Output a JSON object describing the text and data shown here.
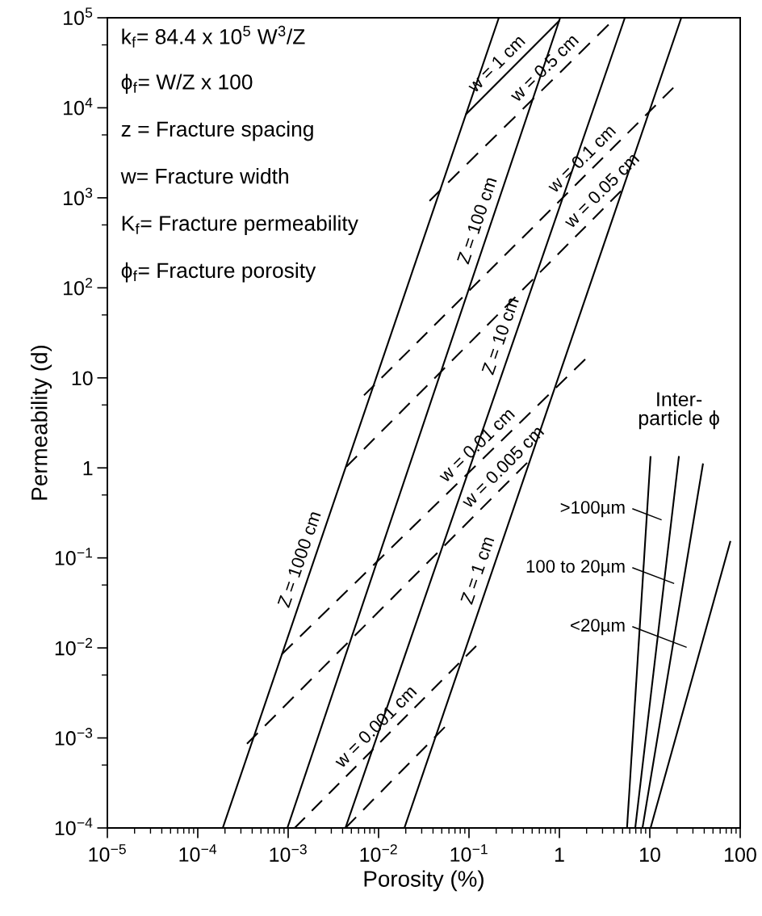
{
  "chart_data": {
    "type": "line",
    "xlabel": "Porosity (%)",
    "ylabel": "Permeability (d)",
    "log": "xy",
    "xlim": [
      1e-05,
      100
    ],
    "ylim": [
      0.0001,
      100000
    ],
    "xticks": [
      {
        "value": 1e-05,
        "label": "10$^{−5}$"
      },
      {
        "value": 0.0001,
        "label": "10$^{−4}$"
      },
      {
        "value": 0.001,
        "label": "10$^{−3}$"
      },
      {
        "value": 0.01,
        "label": "10$^{−2}$"
      },
      {
        "value": 0.1,
        "label": "10$^{−1}$"
      },
      1,
      10,
      100
    ],
    "yticks": [
      {
        "value": 0.0001,
        "label": "10$^{−4}$"
      },
      {
        "value": 0.001,
        "label": "10$^{−3}$"
      },
      {
        "value": 0.01,
        "label": "10$^{−2}$"
      },
      {
        "value": 0.1,
        "label": "10$^{−1}$"
      },
      1,
      10,
      {
        "value": 100,
        "label": "10$^{2}$"
      },
      {
        "value": 1000,
        "label": "10$^{3}$"
      },
      {
        "value": 10000,
        "label": "10$^{4}$"
      },
      {
        "value": 100000,
        "label": "10$^{5}$"
      }
    ],
    "series": [
      {
        "color": "#000000",
        "line_style": "solid",
        "x": [
          0.000189,
          0.214
        ],
        "values": [
          0.0001,
          100000
        ]
      },
      {
        "color": "#000000",
        "line_style": "solid",
        "x": [
          0.00098,
          1.02
        ],
        "values": [
          0.0001,
          100000
        ]
      },
      {
        "color": "#000000",
        "line_style": "solid",
        "x": [
          0.0043,
          5.3
        ],
        "values": [
          0.0001,
          100000
        ]
      },
      {
        "color": "#000000",
        "line_style": "solid",
        "x": [
          0.0193,
          22.3
        ],
        "values": [
          0.0001,
          100000
        ]
      },
      {
        "color": "#000000",
        "line_style": "solid",
        "x": [
          0.092,
          1.0
        ],
        "values": [
          8430,
          93000
        ]
      },
      {
        "color": "#000000",
        "line_style": "dashed",
        "x": [
          0.0366,
          3.5
        ],
        "values": [
          925,
          83700
        ]
      },
      {
        "color": "#000000",
        "line_style": "dashed",
        "x": [
          0.0069,
          18.2
        ],
        "values": [
          6.4,
          16700
        ]
      },
      {
        "color": "#000000",
        "line_style": "dashed",
        "x": [
          0.0044,
          4.8
        ],
        "values": [
          1.03,
          1190
        ]
      },
      {
        "color": "#000000",
        "line_style": "dashed",
        "x": [
          0.00085,
          1.93
        ],
        "values": [
          0.0085,
          16.1
        ]
      },
      {
        "color": "#000000",
        "line_style": "dashed",
        "x": [
          0.00035,
          0.44
        ],
        "values": [
          0.00086,
          1.14
        ]
      },
      {
        "color": "#000000",
        "line_style": "dashed",
        "x": [
          0.00118,
          0.12
        ],
        "values": [
          0.0001,
          0.0105
        ]
      },
      {
        "color": "#000000",
        "line_style": "dashed",
        "x": [
          0.0043,
          0.054
        ],
        "values": [
          0.0001,
          0.00132
        ]
      },
      {
        "color": "#000000",
        "line_style": "solid",
        "x": [
          5.6,
          10.2
        ],
        "values": [
          0.0001,
          1.35
        ]
      },
      {
        "color": "#000000",
        "line_style": "solid",
        "x": [
          6.9,
          21
        ],
        "values": [
          0.0001,
          1.35
        ]
      },
      {
        "color": "#000000",
        "line_style": "solid",
        "x": [
          8.3,
          38.8
        ],
        "values": [
          0.0001,
          1.12
        ]
      },
      {
        "color": "#000000",
        "line_style": "solid",
        "x": [
          10.2,
          78
        ],
        "values": [
          0.0001,
          0.154
        ]
      }
    ],
    "annotations": [
      {
        "text": "Z = 1000 cm",
        "x": 0.00187,
        "y": 0.086
      },
      {
        "text": "Z = 100 cm",
        "x": 0.173,
        "y": 500
      },
      {
        "text": "Z = 10 cm",
        "x": 0.313,
        "y": 26
      },
      {
        "text": "Z = 1 cm",
        "x": 0.175,
        "y": 0.065
      },
      {
        "text": "w = 1 cm",
        "x": 0.26,
        "y": 24000
      },
      {
        "text": "w = 0.5 cm",
        "x": 0.88,
        "y": 21500
      },
      {
        "text": "w = 0.1 cm",
        "x": 2.28,
        "y": 2110
      },
      {
        "text": "w = 0.05 cm",
        "x": 3.8,
        "y": 940
      },
      {
        "text": "w = 0.01 cm",
        "x": 0.157,
        "y": 1.39
      },
      {
        "text": "w = 0.005 cm",
        "x": 0.307,
        "y": 0.8
      },
      {
        "text": "w = 0.001 cm",
        "x": 0.012,
        "y": 0.00104
      },
      {
        "text": "Inter-\nparticle ϕ",
        "x": 21,
        "y": 1.35
      },
      "k$_{f}$= 84.4 x 10$^{5}$ W$^{3}$/Z",
      "ϕ$_{f}$= W/Z x 100",
      "z = Fracture spacing",
      "w= Fracture width",
      "K$_{f}$= Fracture permeability",
      "ϕ$_{f}$= Fracture porosity",
      ">100µm",
      "100 to 20µm",
      "<20µm"
    ]
  }
}
